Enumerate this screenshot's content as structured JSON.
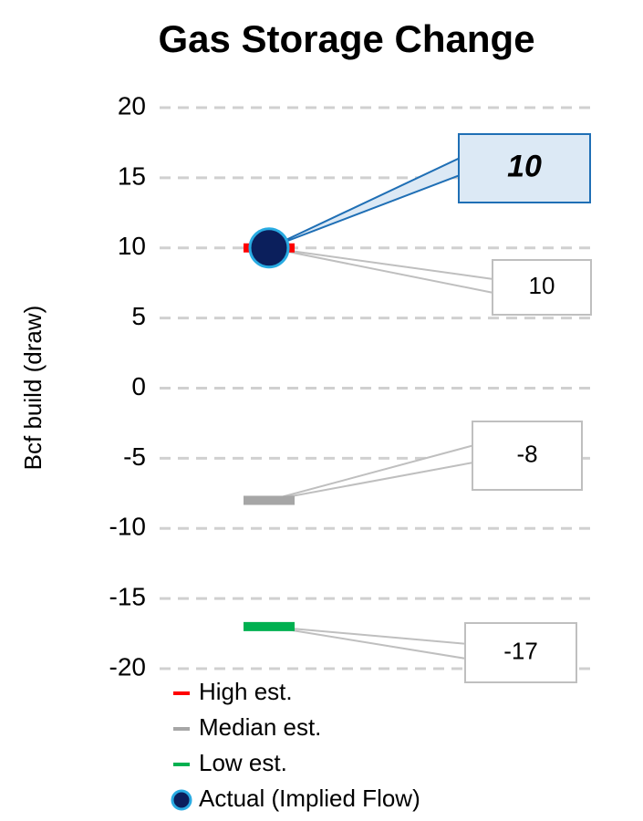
{
  "chart_data": {
    "type": "scatter",
    "title": "Gas Storage Change",
    "y_label": "Bcf build (draw)",
    "categories": [
      null
    ],
    "series": [
      {
        "name": "High est.",
        "color": "#ff0000",
        "marker": "dash",
        "values": [
          10
        ]
      },
      {
        "name": "Median est.",
        "color": "#a6a6a6",
        "marker": "dash",
        "values": [
          -8
        ]
      },
      {
        "name": "Low est.",
        "color": "#00b050",
        "marker": "dash",
        "values": [
          -17
        ]
      },
      {
        "name": "Actual (Implied Flow)",
        "color": "#0b1f5c",
        "edge_color": "#29abe2",
        "marker": "circle",
        "values": [
          10
        ]
      }
    ],
    "ylim": [
      -20,
      20
    ],
    "yticks": [
      -20,
      -15,
      -10,
      -5,
      0,
      5,
      10,
      15,
      20
    ],
    "grid": true,
    "data_labels": true
  }
}
